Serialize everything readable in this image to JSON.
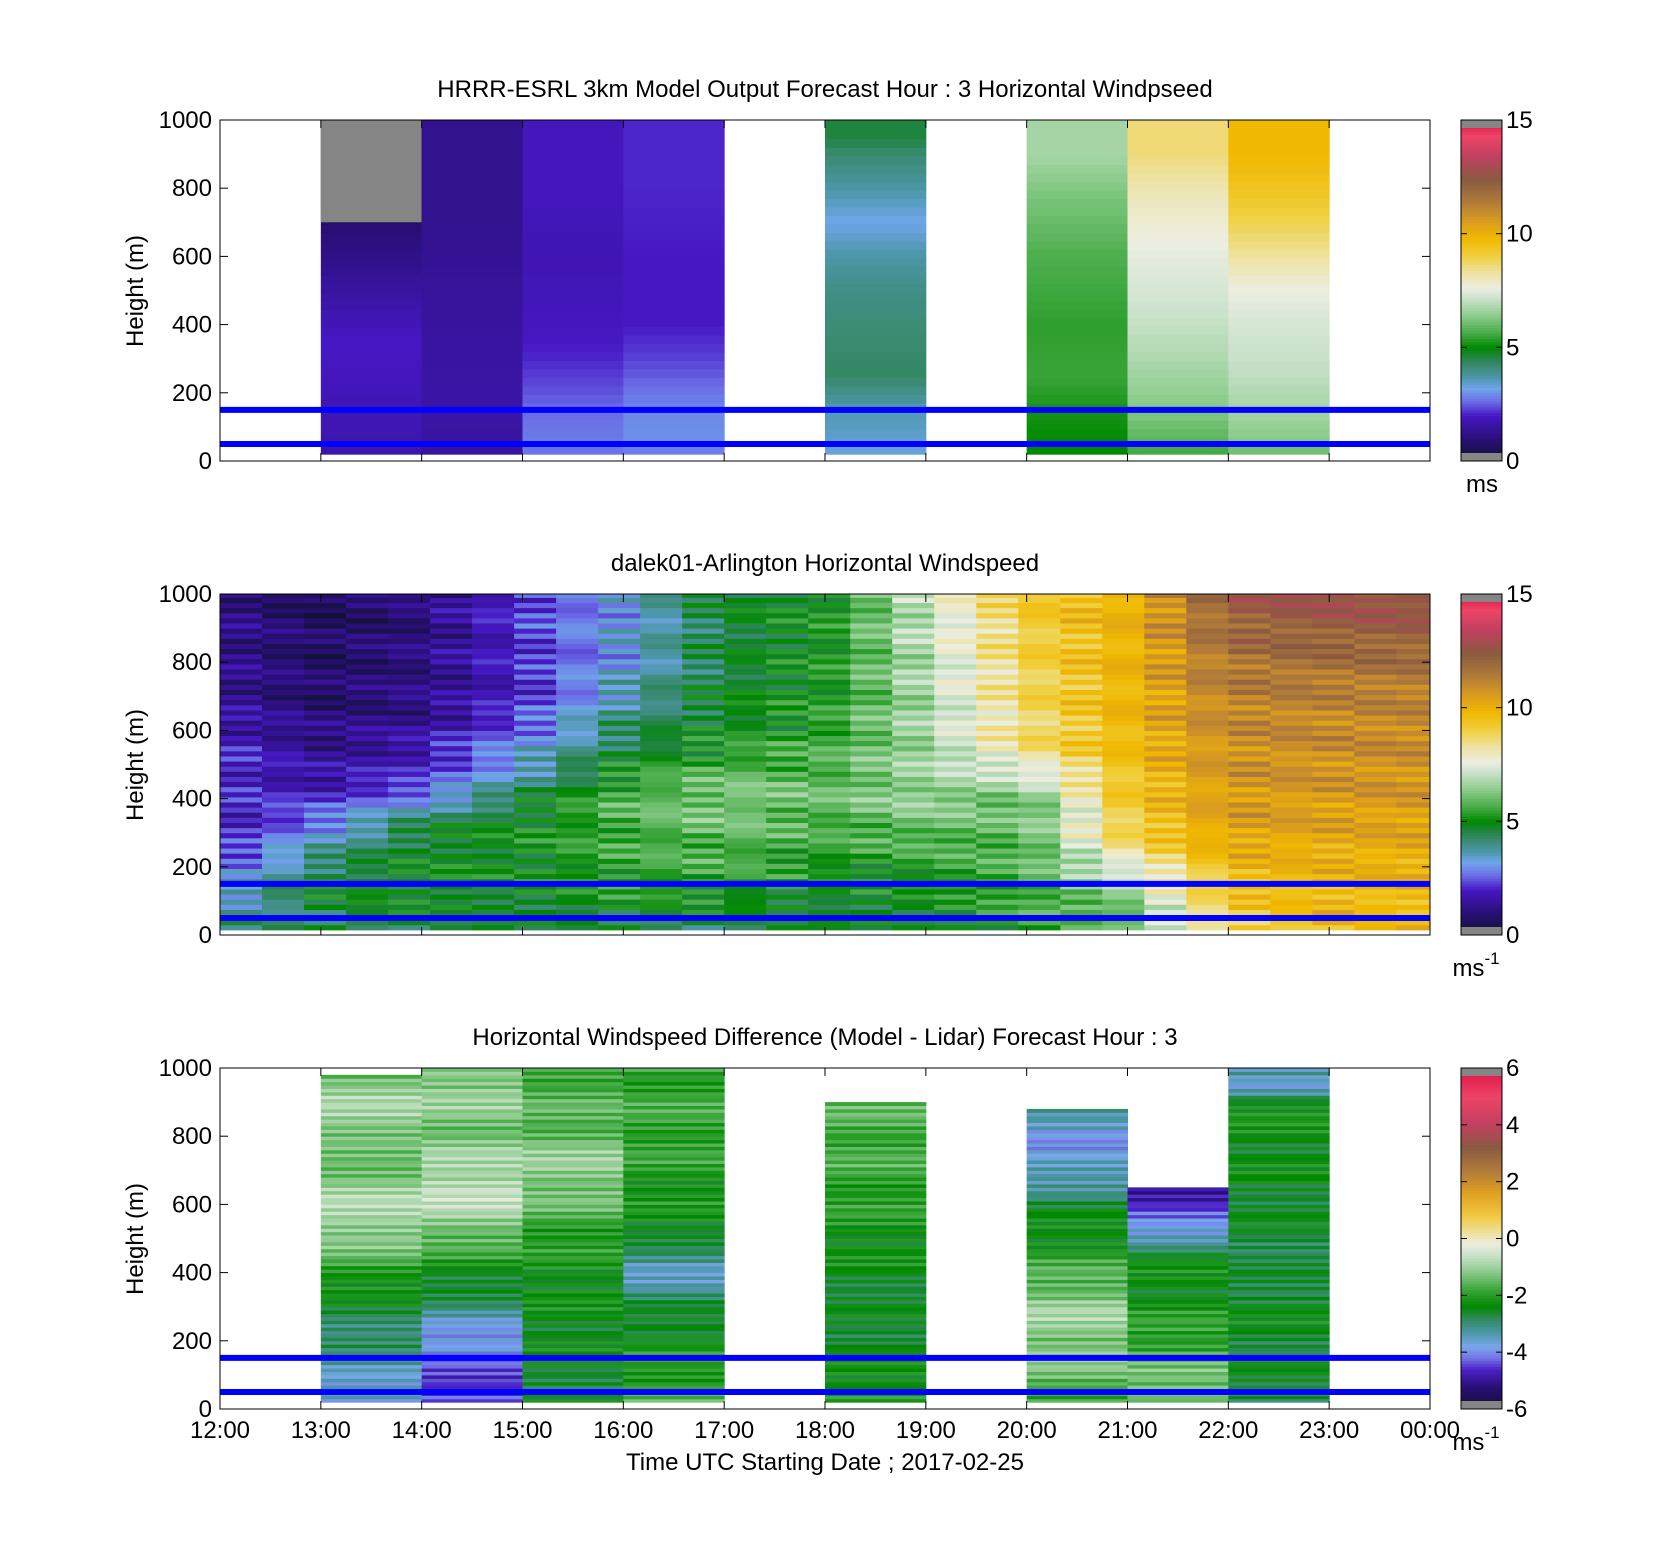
{
  "figure": {
    "xlabel": "Time UTC  Starting Date ; 2017-02-25",
    "x_tick_labels": [
      "12:00",
      "13:00",
      "14:00",
      "15:00",
      "16:00",
      "17:00",
      "18:00",
      "19:00",
      "20:00",
      "21:00",
      "22:00",
      "23:00",
      "00:00"
    ],
    "y_tick_labels": [
      "0",
      "200",
      "400",
      "600",
      "800",
      "1000"
    ],
    "line_color": "#0000ff"
  },
  "chart_data": [
    {
      "type": "heatmap",
      "title": "HRRR-ESRL 3km Model Output   Forecast Hour : 3 Horizontal Windpseed",
      "ylabel": "Height (m)",
      "xlim": [
        "12:00",
        "00:00"
      ],
      "ylim": [
        0,
        1000
      ],
      "colorbar": {
        "ticks": [
          "0",
          "5",
          "10",
          "15"
        ],
        "range": [
          0,
          15
        ],
        "label": "ms",
        "label_sup": ""
      },
      "reference_lines_m": [
        50,
        150
      ],
      "columns": [
        {
          "start": "13:00",
          "values": [
            [
              0,
              1.6
            ],
            [
              50,
              1.7
            ],
            [
              150,
              1.8
            ],
            [
              350,
              2.0
            ],
            [
              600,
              1.2
            ],
            [
              700,
              0.9
            ],
            [
              800,
              -1
            ]
          ]
        },
        {
          "start": "14:00",
          "values": [
            [
              0,
              1.4
            ],
            [
              50,
              1.5
            ],
            [
              150,
              1.6
            ],
            [
              400,
              1.5
            ],
            [
              700,
              1.3
            ]
          ]
        },
        {
          "start": "15:00",
          "values": [
            [
              0,
              2.5
            ],
            [
              50,
              2.8
            ],
            [
              150,
              2.6
            ],
            [
              300,
              2.1
            ],
            [
              400,
              1.9
            ],
            [
              600,
              1.8
            ],
            [
              800,
              1.9
            ]
          ]
        },
        {
          "start": "16:00",
          "values": [
            [
              0,
              2.5
            ],
            [
              50,
              3.0
            ],
            [
              150,
              2.9
            ],
            [
              300,
              2.3
            ],
            [
              400,
              2.0
            ],
            [
              600,
              2.0
            ],
            [
              800,
              2.1
            ]
          ]
        },
        {
          "start": "18:00",
          "values": [
            [
              0,
              3.2
            ],
            [
              50,
              3.4
            ],
            [
              150,
              3.6
            ],
            [
              250,
              4.3
            ],
            [
              350,
              4.2
            ],
            [
              500,
              4.0
            ],
            [
              600,
              3.7
            ],
            [
              700,
              3.2
            ],
            [
              800,
              3.7
            ],
            [
              900,
              4.2
            ],
            [
              950,
              4.6
            ]
          ]
        },
        {
          "start": "20:00",
          "values": [
            [
              0,
              5.0
            ],
            [
              50,
              5.0
            ],
            [
              150,
              5.2
            ],
            [
              250,
              5.5
            ],
            [
              400,
              5.4
            ],
            [
              600,
              5.7
            ],
            [
              700,
              6.0
            ],
            [
              800,
              6.3
            ],
            [
              900,
              6.7
            ]
          ]
        },
        {
          "start": "21:00",
          "values": [
            [
              0,
              5.3
            ],
            [
              50,
              5.8
            ],
            [
              150,
              6.3
            ],
            [
              300,
              6.8
            ],
            [
              450,
              7.2
            ],
            [
              600,
              7.5
            ],
            [
              750,
              7.9
            ],
            [
              900,
              8.6
            ]
          ]
        },
        {
          "start": "22:00",
          "values": [
            [
              0,
              5.8
            ],
            [
              50,
              6.3
            ],
            [
              150,
              6.7
            ],
            [
              250,
              7.0
            ],
            [
              400,
              7.3
            ],
            [
              500,
              7.6
            ],
            [
              600,
              8.3
            ],
            [
              700,
              8.9
            ],
            [
              800,
              9.4
            ],
            [
              900,
              9.8
            ]
          ]
        }
      ]
    },
    {
      "type": "heatmap",
      "title": "dalek01-Arlington  Horizontal Windspeed",
      "ylabel": "Height (m)",
      "xlim": [
        "12:00",
        "00:00"
      ],
      "ylim": [
        0,
        1000
      ],
      "colorbar": {
        "ticks": [
          "0",
          "5",
          "10",
          "15"
        ],
        "range": [
          0,
          15
        ],
        "label": "ms",
        "label_sup": "-1"
      },
      "reference_lines_m": [
        50,
        150
      ],
      "profiles": [
        {
          "time": "12:00",
          "values": [
            [
              0,
              4.0
            ],
            [
              150,
              3.0
            ],
            [
              300,
              1.7
            ],
            [
              500,
              2.2
            ],
            [
              700,
              1.4
            ],
            [
              1000,
              1.2
            ]
          ]
        },
        {
          "time": "13:00",
          "values": [
            [
              0,
              4.5
            ],
            [
              150,
              4.8
            ],
            [
              300,
              3.2
            ],
            [
              450,
              1.6
            ],
            [
              700,
              0.8
            ],
            [
              1000,
              0.6
            ]
          ]
        },
        {
          "time": "14:00",
          "values": [
            [
              0,
              4.6
            ],
            [
              150,
              5.0
            ],
            [
              300,
              4.8
            ],
            [
              450,
              2.2
            ],
            [
              650,
              1.2
            ],
            [
              1000,
              1.0
            ]
          ]
        },
        {
          "time": "15:00",
          "values": [
            [
              0,
              4.4
            ],
            [
              150,
              5.0
            ],
            [
              350,
              5.0
            ],
            [
              500,
              3.4
            ],
            [
              700,
              2.0
            ],
            [
              1000,
              2.3
            ]
          ]
        },
        {
          "time": "16:00",
          "values": [
            [
              0,
              4.5
            ],
            [
              150,
              5.4
            ],
            [
              400,
              5.8
            ],
            [
              600,
              4.2
            ],
            [
              800,
              3.2
            ],
            [
              1000,
              3.2
            ]
          ]
        },
        {
          "time": "17:00",
          "values": [
            [
              0,
              4.2
            ],
            [
              150,
              5.4
            ],
            [
              400,
              6.4
            ],
            [
              600,
              5.0
            ],
            [
              800,
              4.6
            ],
            [
              1000,
              4.7
            ]
          ]
        },
        {
          "time": "18:00",
          "values": [
            [
              0,
              4.6
            ],
            [
              150,
              5.0
            ],
            [
              400,
              6.0
            ],
            [
              700,
              5.2
            ],
            [
              1000,
              5.1
            ]
          ]
        },
        {
          "time": "19:00",
          "values": [
            [
              0,
              4.8
            ],
            [
              150,
              5.0
            ],
            [
              400,
              6.6
            ],
            [
              700,
              6.8
            ],
            [
              1000,
              7.2
            ]
          ]
        },
        {
          "time": "20:00",
          "values": [
            [
              0,
              5.3
            ],
            [
              150,
              5.7
            ],
            [
              400,
              6.0
            ],
            [
              550,
              8.5
            ],
            [
              1000,
              9.2
            ]
          ]
        },
        {
          "time": "21:00",
          "values": [
            [
              0,
              5.6
            ],
            [
              150,
              6.8
            ],
            [
              300,
              9.0
            ],
            [
              600,
              9.8
            ],
            [
              1000,
              10.0
            ]
          ]
        },
        {
          "time": "22:00",
          "values": [
            [
              0,
              9.0
            ],
            [
              150,
              9.4
            ],
            [
              300,
              10.4
            ],
            [
              600,
              11.0
            ],
            [
              800,
              11.6
            ],
            [
              1000,
              12.4
            ]
          ]
        },
        {
          "time": "23:00",
          "values": [
            [
              0,
              9.6
            ],
            [
              150,
              9.8
            ],
            [
              400,
              10.6
            ],
            [
              700,
              11.2
            ],
            [
              1000,
              12.8
            ]
          ]
        }
      ],
      "data_end": "23:50"
    },
    {
      "type": "heatmap",
      "title": "Horizontal Windspeed Difference (Model - Lidar) Forecast Hour : 3",
      "ylabel": "Height (m)",
      "xlim": [
        "12:00",
        "00:00"
      ],
      "ylim": [
        0,
        1000
      ],
      "colorbar": {
        "ticks": [
          "-6",
          "-4",
          "-2",
          "0",
          "2",
          "4",
          "6"
        ],
        "range": [
          -6,
          6
        ],
        "label": "ms",
        "label_sup": "-1"
      },
      "reference_lines_m": [
        50,
        150
      ],
      "columns": [
        {
          "start": "13:00",
          "top": 980,
          "values": [
            [
              20,
              -3.8
            ],
            [
              150,
              -3.2
            ],
            [
              300,
              -2.6
            ],
            [
              450,
              -1.6
            ],
            [
              550,
              -0.8
            ],
            [
              650,
              -1.0
            ],
            [
              750,
              -1.6
            ],
            [
              850,
              -0.9
            ],
            [
              980,
              -1.2
            ]
          ]
        },
        {
          "start": "14:00",
          "top": 1000,
          "values": [
            [
              20,
              -4.6
            ],
            [
              150,
              -4.2
            ],
            [
              250,
              -3.6
            ],
            [
              350,
              -2.6
            ],
            [
              450,
              -2.0
            ],
            [
              550,
              -1.0
            ],
            [
              650,
              -0.6
            ],
            [
              800,
              -1.3
            ],
            [
              1000,
              -1.0
            ]
          ]
        },
        {
          "start": "15:00",
          "top": 1000,
          "values": [
            [
              20,
              -2.6
            ],
            [
              150,
              -2.4
            ],
            [
              350,
              -2.3
            ],
            [
              500,
              -2.0
            ],
            [
              700,
              -1.0
            ],
            [
              850,
              -1.6
            ],
            [
              1000,
              -1.7
            ]
          ]
        },
        {
          "start": "16:00",
          "top": 1000,
          "values": [
            [
              20,
              -1.6
            ],
            [
              100,
              -2.0
            ],
            [
              250,
              -2.4
            ],
            [
              420,
              -3.6
            ],
            [
              500,
              -2.4
            ],
            [
              700,
              -2.0
            ],
            [
              850,
              -1.8
            ],
            [
              1000,
              -1.9
            ]
          ]
        },
        {
          "start": "18:00",
          "top": 900,
          "values": [
            [
              20,
              -2.0
            ],
            [
              150,
              -2.4
            ],
            [
              300,
              -2.6
            ],
            [
              500,
              -2.2
            ],
            [
              700,
              -1.8
            ],
            [
              900,
              -1.6
            ]
          ]
        },
        {
          "start": "20:00",
          "top": 880,
          "values": [
            [
              20,
              -1.8
            ],
            [
              150,
              -1.2
            ],
            [
              300,
              -1.0
            ],
            [
              450,
              -2.0
            ],
            [
              600,
              -2.6
            ],
            [
              700,
              -3.6
            ],
            [
              800,
              -3.8
            ],
            [
              880,
              -3.4
            ]
          ]
        },
        {
          "start": "21:00",
          "top": 650,
          "values": [
            [
              20,
              -1.2
            ],
            [
              150,
              -1.6
            ],
            [
              300,
              -2.2
            ],
            [
              450,
              -2.4
            ],
            [
              550,
              -4.2
            ],
            [
              600,
              -4.6
            ],
            [
              650,
              -4.8
            ]
          ]
        },
        {
          "start": "22:00",
          "top": 1000,
          "values": [
            [
              20,
              -2.6
            ],
            [
              150,
              -2.6
            ],
            [
              300,
              -2.4
            ],
            [
              400,
              -2.8
            ],
            [
              500,
              -2.6
            ],
            [
              700,
              -2.4
            ],
            [
              900,
              -2.2
            ],
            [
              950,
              -3.8
            ],
            [
              1000,
              -3.4
            ]
          ]
        }
      ]
    }
  ]
}
